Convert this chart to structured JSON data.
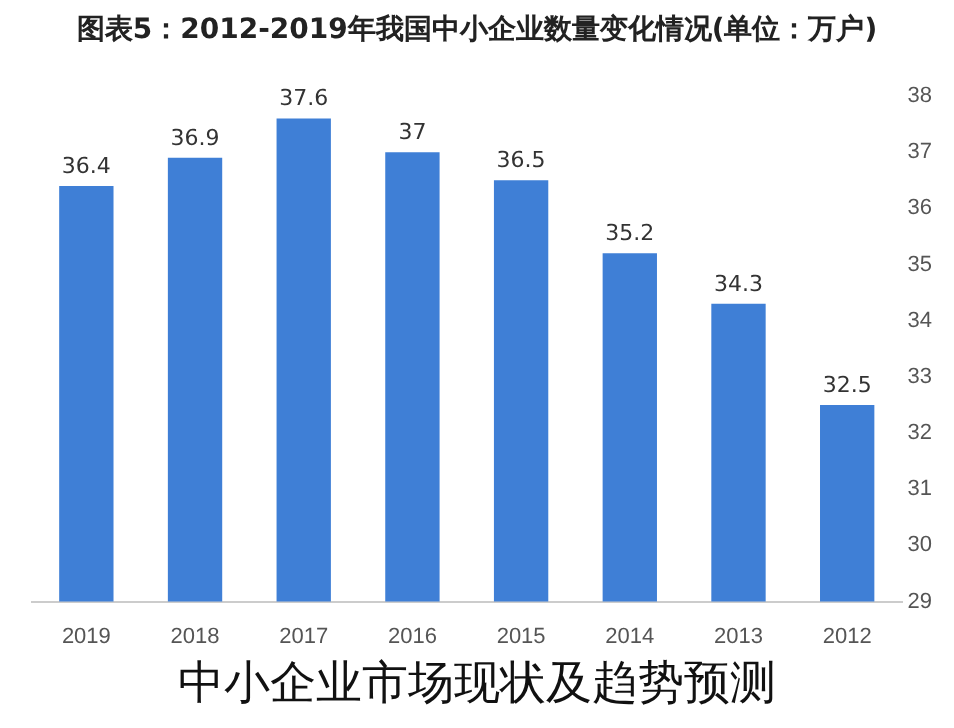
{
  "chart_data": {
    "type": "bar",
    "title": "图表5：2012-2019年我国中小企业数量变化情况(单位：万户)",
    "categories": [
      "2019",
      "2018",
      "2017",
      "2016",
      "2015",
      "2014",
      "2013",
      "2012"
    ],
    "values": [
      36.4,
      36.9,
      37.6,
      37,
      36.5,
      35.2,
      34.3,
      32.5
    ],
    "color": "#3f7fd6",
    "ylim": [
      29,
      38
    ],
    "yticks": [
      29,
      30,
      31,
      32,
      33,
      34,
      35,
      36,
      37,
      38
    ],
    "grid": false,
    "data_labels": true,
    "legend": false,
    "annotations": [
      "中小企业市场现状及趋势预测"
    ]
  }
}
